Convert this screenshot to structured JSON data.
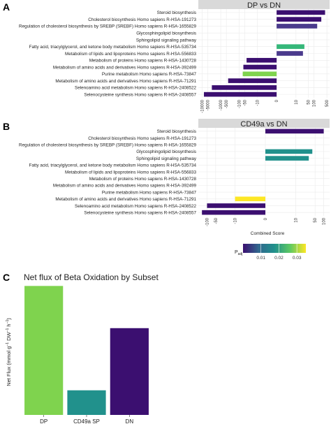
{
  "chart_data": [
    {
      "panel_label": "A",
      "type": "bar",
      "orientation": "horizontal",
      "title": "DP vs DN",
      "scale": "signed-log",
      "ticks": [
        "-10000",
        "-5000",
        "-1000",
        "-500",
        "-100",
        "-50",
        "-10",
        "0",
        "10",
        "50",
        "100",
        "500"
      ],
      "ticks_values": [
        -10000,
        -5000,
        -1000,
        -500,
        -100,
        -50,
        -10,
        0,
        10,
        50,
        100,
        500
      ],
      "categories": [
        "Steroid biosynthesis",
        "Cholesterol biosynthesis Homo sapiens R-HSA-191273",
        "Regulation of cholesterol biosynthesis by SREBP (SREBF) Homo sapiens R-HSA-1655829",
        "Glycosphingolipid biosynthesis",
        "Sphingolipid signaling pathway",
        "Fatty acid, triacylglycerol, and ketone body metabolism Homo sapiens R-HSA-535734",
        "Metabolism of lipids and lipoproteins Homo sapiens R-HSA-556833",
        "Metabolism of proteins Homo sapiens R-HSA-1430728",
        "Metabolism of amino acids and derivatives Homo sapiens R-HSA-392499",
        "Purine metabolism Homo sapiens R-HSA-73847",
        "Metabolism of amino acids and derivatives Homo sapiens R-HSA-71291",
        "Selenoamino acid metabolism Homo sapiens R-HSA-2408522",
        "Selenocysteine synthesis Homo sapiens R-HSA-2408557"
      ],
      "values": [
        400,
        250,
        150,
        null,
        null,
        30,
        25,
        -40,
        -60,
        -65,
        -400,
        -3000,
        -8000
      ],
      "colors": [
        "#3b0f70",
        "#3b0f70",
        "#4a3a8c",
        null,
        null,
        "#35b779",
        "#4a3a8c",
        "#3b0f70",
        "#3b0f70",
        "#7fd34e",
        "#3b0f70",
        "#3b0f70",
        "#3b0f70"
      ]
    },
    {
      "panel_label": "B",
      "type": "bar",
      "orientation": "horizontal",
      "title": "CD49a vs DN",
      "xlabel": "Combined Score",
      "scale": "signed-log",
      "ticks": [
        "-100",
        "-50",
        "-10",
        "0",
        "10",
        "50",
        "100"
      ],
      "ticks_values": [
        -100,
        -50,
        -10,
        0,
        10,
        50,
        100
      ],
      "categories": [
        "Steroid biosynthesis",
        "Cholesterol biosynthesis Homo sapiens R-HSA-191273",
        "Regulation of cholesterol biosynthesis by SREBP (SREBF) Homo sapiens R-HSA-1655829",
        "Glycosphingolipid biosynthesis",
        "Sphingolipid signaling pathway",
        "Fatty acid, triacylglycerol, and ketone body metabolism Homo sapiens R-HSA-535734",
        "Metabolism of lipids and lipoproteins Homo sapiens R-HSA-556833",
        "Metabolism of proteins Homo sapiens R-HSA-1430728",
        "Metabolism of amino acids and derivatives Homo sapiens R-HSA-392499",
        "Purine metabolism Homo sapiens R-HSA-73847",
        "Metabolism of amino acids and derivatives Homo sapiens R-HSA-71291",
        "Selenoamino acid metabolism Homo sapiens R-HSA-2408522",
        "Selenocysteine synthesis Homo sapiens R-HSA-2408557"
      ],
      "values": [
        100,
        null,
        null,
        40,
        30,
        null,
        null,
        null,
        null,
        null,
        -10,
        -100,
        -150
      ],
      "colors": [
        "#3b0f70",
        null,
        null,
        "#21918c",
        "#21918c",
        null,
        null,
        null,
        null,
        null,
        "#fde725",
        "#3b0f70",
        "#3b0f70"
      ],
      "legend": {
        "title": "P",
        "title_subscript": "adj",
        "ticks": [
          "0.01",
          "0.02",
          "0.03"
        ],
        "ticks_values": [
          0.01,
          0.02,
          0.03
        ],
        "range": [
          0,
          0.035
        ],
        "gradient": [
          "#3b0f70",
          "#31688e",
          "#21918c",
          "#5ec962",
          "#fde725"
        ]
      }
    },
    {
      "panel_label": "C",
      "type": "bar",
      "title": "Net flux of Beta Oxidation by Subset",
      "ylabel_main": "Net Flux (mmol g",
      "ylabel_sup1": "−1",
      "ylabel_mid": " DW",
      "ylabel_sup2": "−1",
      "ylabel_end": " h",
      "ylabel_sup3": "−1",
      "ylabel_close": ")",
      "categories": [
        "DP",
        "CD49a SP",
        "DN"
      ],
      "values": [
        110,
        21,
        74
      ],
      "ylim": [
        0,
        112
      ],
      "colors": [
        "#7fd34e",
        "#21918c",
        "#3b0f70"
      ]
    }
  ]
}
